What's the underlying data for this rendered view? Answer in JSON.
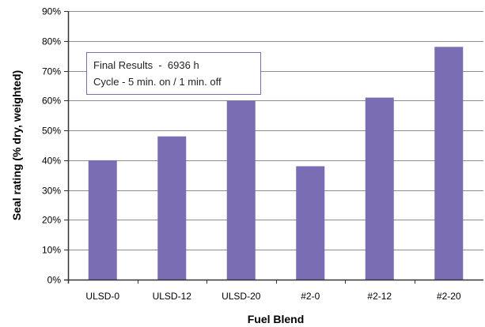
{
  "chart_data": {
    "type": "bar",
    "categories": [
      "ULSD-0",
      "ULSD-12",
      "ULSD-20",
      "#2-0",
      "#2-12",
      "#2-20"
    ],
    "values": [
      0.4,
      0.48,
      0.6,
      0.38,
      0.61,
      0.78
    ],
    "xlabel": "Fuel Blend",
    "ylabel": "Seal rating (% dry, weighted)",
    "ylim": [
      0,
      0.9
    ],
    "yticks": [
      "0%",
      "10%",
      "20%",
      "30%",
      "40%",
      "50%",
      "60%",
      "70%",
      "80%",
      "90%"
    ],
    "grid": true,
    "bar_color": "#7b6db4",
    "annotation": [
      "Final Results  -  6936 h",
      "Cycle - 5 min. on / 1 min. off"
    ]
  }
}
